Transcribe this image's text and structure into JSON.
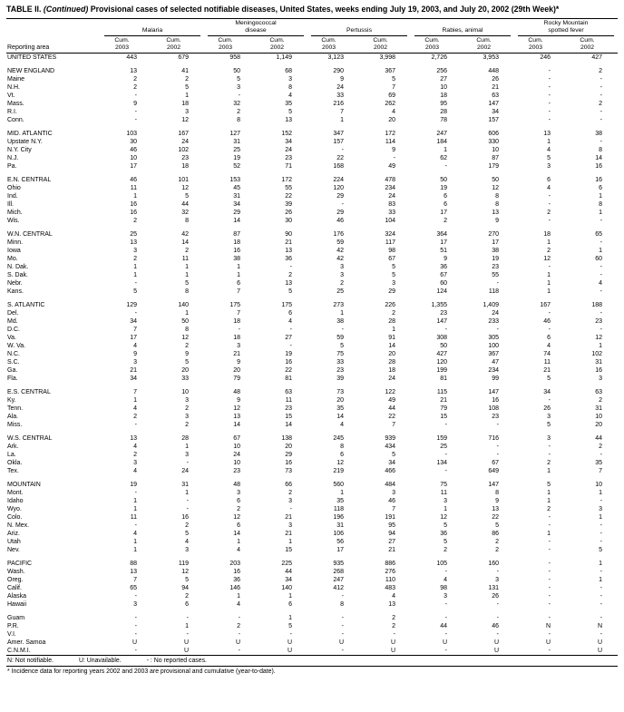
{
  "title": {
    "label": "TABLE II.",
    "continued": "(Continued)",
    "text": "Provisional cases of selected notifiable diseases, United States, weeks ending July 19, 2003, and July 20, 2002 (29th Week)*"
  },
  "table": {
    "reporting_area_label": "Reporting area",
    "groups": [
      "Malaria",
      "Meningococcal\ndisease",
      "Pertussis",
      "Rabies, animal",
      "Rocky Mountain\nspotted fever"
    ],
    "subcols": [
      [
        "Cum.",
        "2003"
      ],
      [
        "Cum.",
        "2002"
      ]
    ],
    "body": [
      [
        [
          "UNITED STATES",
          "443",
          "679",
          "958",
          "1,149",
          "3,123",
          "3,998",
          "2,726",
          "3,953",
          "246",
          "427"
        ]
      ],
      [
        [
          "NEW ENGLAND",
          "13",
          "41",
          "50",
          "68",
          "290",
          "367",
          "256",
          "448",
          "-",
          "2"
        ],
        [
          "Maine",
          "2",
          "2",
          "5",
          "3",
          "9",
          "5",
          "27",
          "26",
          "-",
          "-"
        ],
        [
          "N.H.",
          "2",
          "5",
          "3",
          "8",
          "24",
          "7",
          "10",
          "21",
          "-",
          "-"
        ],
        [
          "Vt.",
          "-",
          "1",
          "-",
          "4",
          "33",
          "69",
          "18",
          "63",
          "-",
          "-"
        ],
        [
          "Mass.",
          "9",
          "18",
          "32",
          "35",
          "216",
          "262",
          "95",
          "147",
          "-",
          "2"
        ],
        [
          "R.I.",
          "-",
          "3",
          "2",
          "5",
          "7",
          "4",
          "28",
          "34",
          "-",
          "-"
        ],
        [
          "Conn.",
          "-",
          "12",
          "8",
          "13",
          "1",
          "20",
          "78",
          "157",
          "-",
          "-"
        ]
      ],
      [
        [
          "MID. ATLANTIC",
          "103",
          "167",
          "127",
          "152",
          "347",
          "172",
          "247",
          "606",
          "13",
          "38"
        ],
        [
          "Upstate N.Y.",
          "30",
          "24",
          "31",
          "34",
          "157",
          "114",
          "184",
          "330",
          "1",
          "-"
        ],
        [
          "N.Y. City",
          "46",
          "102",
          "25",
          "24",
          "-",
          "9",
          "1",
          "10",
          "4",
          "8"
        ],
        [
          "N.J.",
          "10",
          "23",
          "19",
          "23",
          "22",
          "-",
          "62",
          "87",
          "5",
          "14"
        ],
        [
          "Pa.",
          "17",
          "18",
          "52",
          "71",
          "168",
          "49",
          "-",
          "179",
          "3",
          "16"
        ]
      ],
      [
        [
          "E.N. CENTRAL",
          "46",
          "101",
          "153",
          "172",
          "224",
          "478",
          "50",
          "50",
          "6",
          "16"
        ],
        [
          "Ohio",
          "11",
          "12",
          "45",
          "55",
          "120",
          "234",
          "19",
          "12",
          "4",
          "6"
        ],
        [
          "Ind.",
          "1",
          "5",
          "31",
          "22",
          "29",
          "24",
          "6",
          "8",
          "-",
          "1"
        ],
        [
          "Ill.",
          "16",
          "44",
          "34",
          "39",
          "-",
          "83",
          "6",
          "8",
          "-",
          "8"
        ],
        [
          "Mich.",
          "16",
          "32",
          "29",
          "26",
          "29",
          "33",
          "17",
          "13",
          "2",
          "1"
        ],
        [
          "Wis.",
          "2",
          "8",
          "14",
          "30",
          "46",
          "104",
          "2",
          "9",
          "-",
          "-"
        ]
      ],
      [
        [
          "W.N. CENTRAL",
          "25",
          "42",
          "87",
          "90",
          "176",
          "324",
          "364",
          "270",
          "18",
          "65"
        ],
        [
          "Minn.",
          "13",
          "14",
          "18",
          "21",
          "59",
          "117",
          "17",
          "17",
          "1",
          "-"
        ],
        [
          "Iowa",
          "3",
          "2",
          "16",
          "13",
          "42",
          "98",
          "51",
          "38",
          "2",
          "1"
        ],
        [
          "Mo.",
          "2",
          "11",
          "38",
          "36",
          "42",
          "67",
          "9",
          "19",
          "12",
          "60"
        ],
        [
          "N. Dak.",
          "1",
          "1",
          "1",
          "-",
          "3",
          "5",
          "36",
          "23",
          "-",
          "-"
        ],
        [
          "S. Dak.",
          "1",
          "1",
          "1",
          "2",
          "3",
          "5",
          "67",
          "55",
          "1",
          "-"
        ],
        [
          "Nebr.",
          "-",
          "5",
          "6",
          "13",
          "2",
          "3",
          "60",
          "-",
          "1",
          "4"
        ],
        [
          "Kans.",
          "5",
          "8",
          "7",
          "5",
          "25",
          "29",
          "124",
          "118",
          "1",
          "-"
        ]
      ],
      [
        [
          "S. ATLANTIC",
          "129",
          "140",
          "175",
          "175",
          "273",
          "226",
          "1,355",
          "1,409",
          "167",
          "188"
        ],
        [
          "Del.",
          "-",
          "1",
          "7",
          "6",
          "1",
          "2",
          "23",
          "24",
          "-",
          "-"
        ],
        [
          "Md.",
          "34",
          "50",
          "18",
          "4",
          "38",
          "28",
          "147",
          "233",
          "46",
          "23"
        ],
        [
          "D.C.",
          "7",
          "8",
          "-",
          "-",
          "-",
          "1",
          "-",
          "-",
          "-",
          "-"
        ],
        [
          "Va.",
          "17",
          "12",
          "18",
          "27",
          "59",
          "91",
          "308",
          "305",
          "6",
          "12"
        ],
        [
          "W. Va.",
          "4",
          "2",
          "3",
          "-",
          "5",
          "14",
          "50",
          "100",
          "4",
          "1"
        ],
        [
          "N.C.",
          "9",
          "9",
          "21",
          "19",
          "75",
          "20",
          "427",
          "367",
          "74",
          "102"
        ],
        [
          "S.C.",
          "3",
          "5",
          "9",
          "16",
          "33",
          "28",
          "120",
          "47",
          "11",
          "31"
        ],
        [
          "Ga.",
          "21",
          "20",
          "20",
          "22",
          "23",
          "18",
          "199",
          "234",
          "21",
          "16"
        ],
        [
          "Fla.",
          "34",
          "33",
          "79",
          "81",
          "39",
          "24",
          "81",
          "99",
          "5",
          "3"
        ]
      ],
      [
        [
          "E.S. CENTRAL",
          "7",
          "10",
          "48",
          "63",
          "73",
          "122",
          "115",
          "147",
          "34",
          "63"
        ],
        [
          "Ky.",
          "1",
          "3",
          "9",
          "11",
          "20",
          "49",
          "21",
          "16",
          "-",
          "2"
        ],
        [
          "Tenn.",
          "4",
          "2",
          "12",
          "23",
          "35",
          "44",
          "79",
          "108",
          "26",
          "31"
        ],
        [
          "Ala.",
          "2",
          "3",
          "13",
          "15",
          "14",
          "22",
          "15",
          "23",
          "3",
          "10"
        ],
        [
          "Miss.",
          "-",
          "2",
          "14",
          "14",
          "4",
          "7",
          "-",
          "-",
          "5",
          "20"
        ]
      ],
      [
        [
          "W.S. CENTRAL",
          "13",
          "28",
          "67",
          "138",
          "245",
          "939",
          "159",
          "716",
          "3",
          "44"
        ],
        [
          "Ark.",
          "4",
          "1",
          "10",
          "20",
          "8",
          "434",
          "25",
          "-",
          "-",
          "2"
        ],
        [
          "La.",
          "2",
          "3",
          "24",
          "29",
          "6",
          "5",
          "-",
          "-",
          "-",
          "-"
        ],
        [
          "Okla.",
          "3",
          "-",
          "10",
          "16",
          "12",
          "34",
          "134",
          "67",
          "2",
          "35"
        ],
        [
          "Tex.",
          "4",
          "24",
          "23",
          "73",
          "219",
          "466",
          "-",
          "649",
          "1",
          "7"
        ]
      ],
      [
        [
          "MOUNTAIN",
          "19",
          "31",
          "48",
          "66",
          "560",
          "484",
          "75",
          "147",
          "5",
          "10"
        ],
        [
          "Mont.",
          "-",
          "1",
          "3",
          "2",
          "1",
          "3",
          "11",
          "8",
          "1",
          "1"
        ],
        [
          "Idaho",
          "1",
          "-",
          "6",
          "3",
          "35",
          "46",
          "3",
          "9",
          "1",
          "-"
        ],
        [
          "Wyo.",
          "1",
          "-",
          "2",
          "-",
          "118",
          "7",
          "1",
          "13",
          "2",
          "3"
        ],
        [
          "Colo.",
          "11",
          "16",
          "12",
          "21",
          "196",
          "191",
          "12",
          "22",
          "-",
          "1"
        ],
        [
          "N. Mex.",
          "-",
          "2",
          "6",
          "3",
          "31",
          "95",
          "5",
          "5",
          "-",
          "-"
        ],
        [
          "Ariz.",
          "4",
          "5",
          "14",
          "21",
          "106",
          "94",
          "36",
          "86",
          "1",
          "-"
        ],
        [
          "Utah",
          "1",
          "4",
          "1",
          "1",
          "56",
          "27",
          "5",
          "2",
          "-",
          "-"
        ],
        [
          "Nev.",
          "1",
          "3",
          "4",
          "15",
          "17",
          "21",
          "2",
          "2",
          "-",
          "5"
        ]
      ],
      [
        [
          "PACIFIC",
          "88",
          "119",
          "203",
          "225",
          "935",
          "886",
          "105",
          "160",
          "-",
          "1"
        ],
        [
          "Wash.",
          "13",
          "12",
          "16",
          "44",
          "268",
          "276",
          "-",
          "-",
          "-",
          "-"
        ],
        [
          "Oreg.",
          "7",
          "5",
          "36",
          "34",
          "247",
          "110",
          "4",
          "3",
          "-",
          "1"
        ],
        [
          "Calif.",
          "65",
          "94",
          "146",
          "140",
          "412",
          "483",
          "98",
          "131",
          "-",
          "-"
        ],
        [
          "Alaska",
          "-",
          "2",
          "1",
          "1",
          "-",
          "4",
          "3",
          "26",
          "-",
          "-"
        ],
        [
          "Hawaii",
          "3",
          "6",
          "4",
          "6",
          "8",
          "13",
          "-",
          "-",
          "-",
          "-"
        ]
      ],
      [
        [
          "Guam",
          "-",
          "-",
          "-",
          "1",
          "-",
          "2",
          "-",
          "-",
          "-",
          "-"
        ],
        [
          "P.R.",
          "-",
          "1",
          "2",
          "5",
          "-",
          "2",
          "44",
          "46",
          "N",
          "N"
        ],
        [
          "V.I.",
          "-",
          "-",
          "-",
          "-",
          "-",
          "-",
          "-",
          "-",
          "-",
          "-"
        ],
        [
          "Amer. Samoa",
          "U",
          "U",
          "U",
          "U",
          "U",
          "U",
          "U",
          "U",
          "U",
          "U"
        ],
        [
          "C.N.M.I.",
          "-",
          "U",
          "-",
          "U",
          "-",
          "U",
          "-",
          "U",
          "-",
          "U"
        ]
      ]
    ]
  },
  "legend": [
    "N: Not notifiable.",
    "U: Unavailable.",
    "- : No reported cases."
  ],
  "footnote": "* Incidence data for reporting years 2002 and 2003 are provisional and cumulative (year-to-date)."
}
